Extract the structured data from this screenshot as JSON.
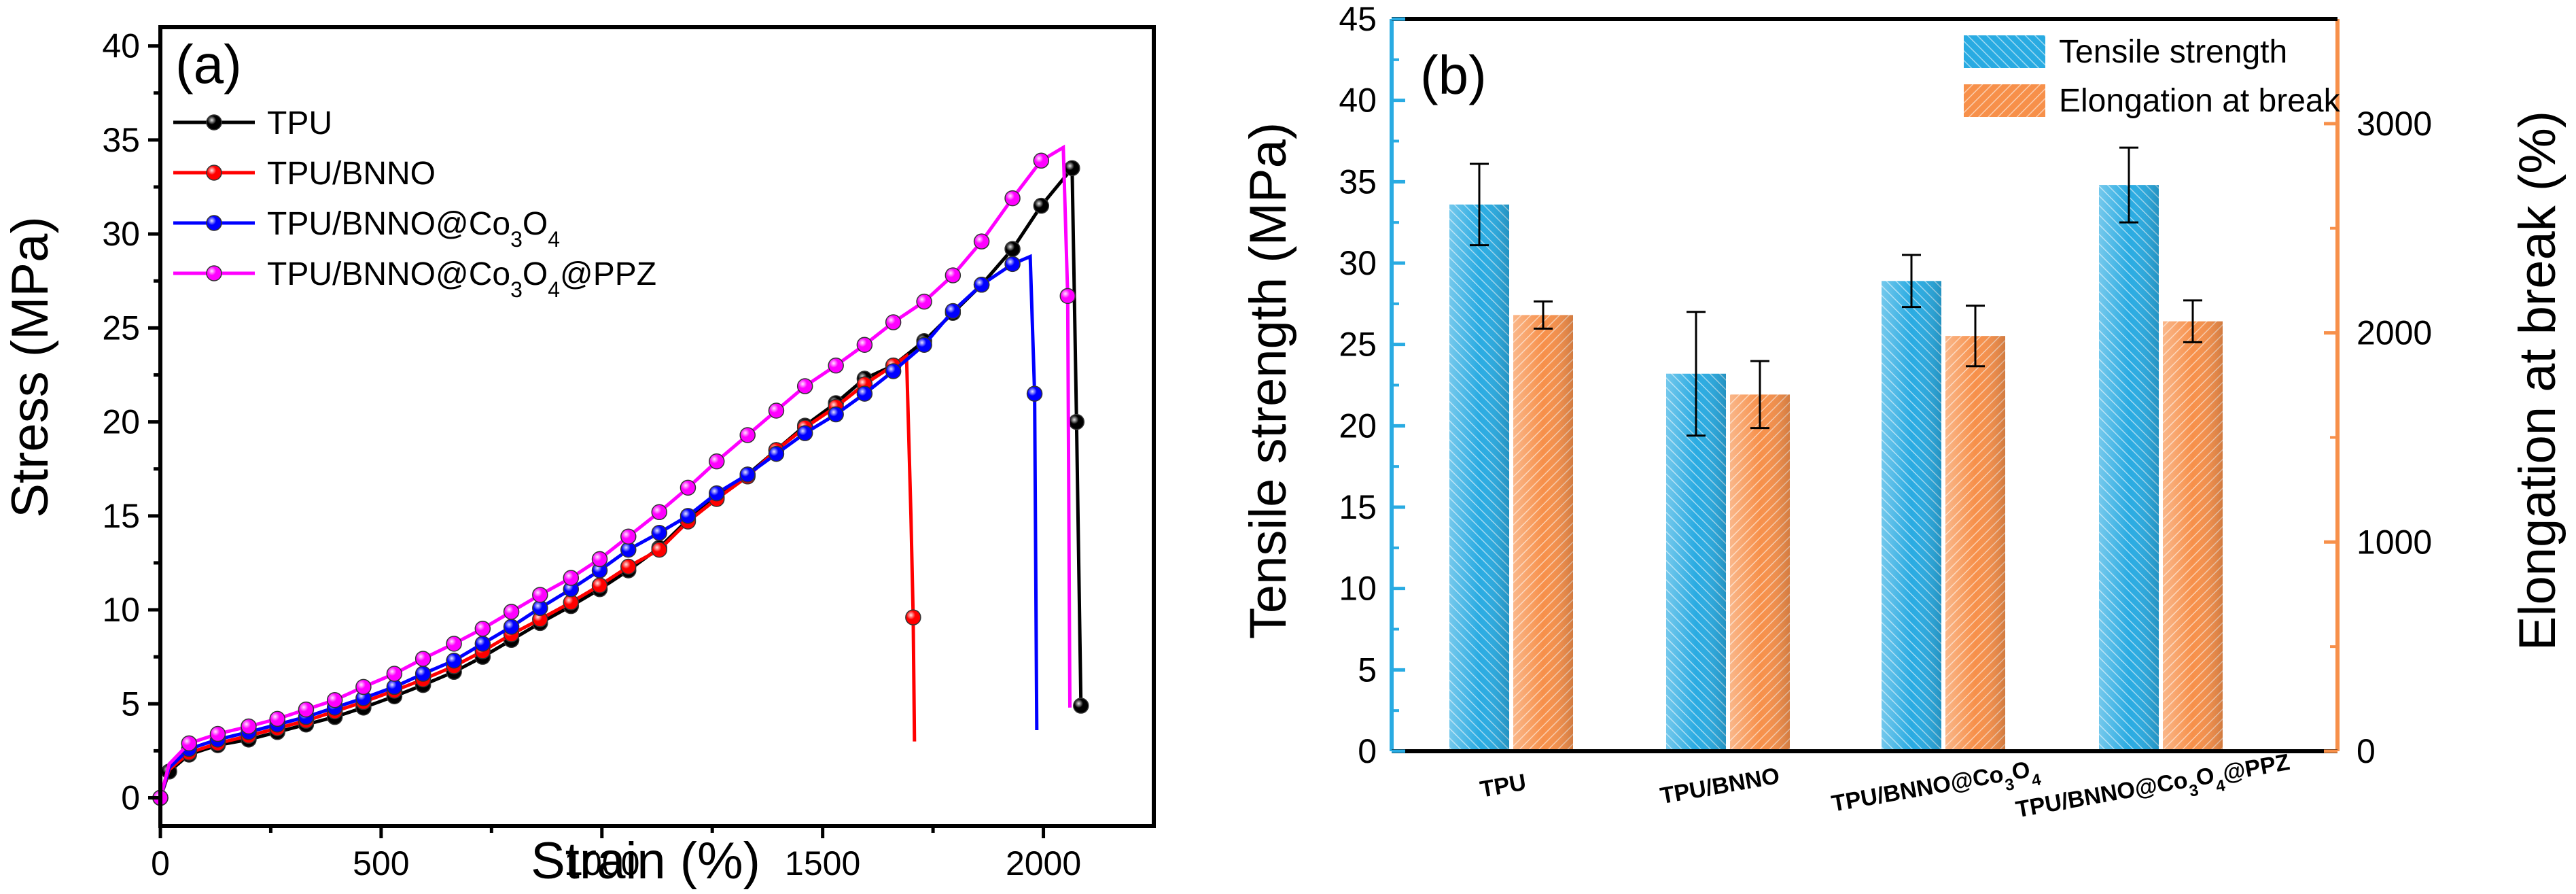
{
  "chart_data": [
    {
      "panel": "(a)",
      "type": "line",
      "xlabel": "Strain (%)",
      "ylabel": "Stress (MPa)",
      "xlim": [
        0,
        2250
      ],
      "ylim": [
        -1.5,
        41
      ],
      "x_ticks": [
        0,
        500,
        1000,
        1500,
        2000
      ],
      "y_ticks": [
        0,
        5,
        10,
        15,
        20,
        25,
        30,
        35,
        40
      ],
      "legend_position": "top-left",
      "series": [
        {
          "name": "TPU",
          "color": "#000000",
          "points": [
            [
              0,
              0
            ],
            [
              20,
              1.4
            ],
            [
              65,
              2.3
            ],
            [
              130,
              2.8
            ],
            [
              200,
              3.1
            ],
            [
              265,
              3.5
            ],
            [
              330,
              3.9
            ],
            [
              395,
              4.3
            ],
            [
              460,
              4.8
            ],
            [
              530,
              5.4
            ],
            [
              595,
              6.0
            ],
            [
              665,
              6.7
            ],
            [
              730,
              7.5
            ],
            [
              795,
              8.4
            ],
            [
              860,
              9.3
            ],
            [
              930,
              10.2
            ],
            [
              995,
              11.1
            ],
            [
              1060,
              12.1
            ],
            [
              1130,
              13.3
            ],
            [
              1195,
              14.8
            ],
            [
              1260,
              16.0
            ],
            [
              1330,
              17.2
            ],
            [
              1395,
              18.5
            ],
            [
              1460,
              19.8
            ],
            [
              1530,
              21.0
            ],
            [
              1595,
              22.3
            ],
            [
              1660,
              23.0
            ],
            [
              1730,
              24.3
            ],
            [
              1795,
              25.8
            ],
            [
              1860,
              27.3
            ],
            [
              1930,
              29.2
            ],
            [
              1995,
              31.5
            ],
            [
              2065,
              33.5
            ],
            [
              2075,
              20.0
            ],
            [
              2085,
              4.9
            ]
          ],
          "markers_every": 1
        },
        {
          "name": "TPU/BNNO",
          "color": "#ff0000",
          "points": [
            [
              0,
              0
            ],
            [
              20,
              1.5
            ],
            [
              65,
              2.4
            ],
            [
              130,
              2.9
            ],
            [
              200,
              3.3
            ],
            [
              265,
              3.7
            ],
            [
              330,
              4.1
            ],
            [
              395,
              4.6
            ],
            [
              460,
              5.1
            ],
            [
              530,
              5.7
            ],
            [
              595,
              6.3
            ],
            [
              665,
              7.0
            ],
            [
              730,
              7.8
            ],
            [
              795,
              8.7
            ],
            [
              860,
              9.5
            ],
            [
              930,
              10.4
            ],
            [
              995,
              11.3
            ],
            [
              1060,
              12.3
            ],
            [
              1130,
              13.2
            ],
            [
              1195,
              14.7
            ],
            [
              1260,
              15.9
            ],
            [
              1330,
              17.1
            ],
            [
              1395,
              18.5
            ],
            [
              1460,
              19.7
            ],
            [
              1530,
              20.8
            ],
            [
              1595,
              22.0
            ],
            [
              1660,
              23.0
            ],
            [
              1690,
              23.5
            ],
            [
              1700,
              15.0
            ],
            [
              1705,
              9.6
            ],
            [
              1708,
              3.0
            ]
          ],
          "marker_points": [
            [
              0,
              0
            ],
            [
              65,
              2.4
            ],
            [
              130,
              2.9
            ],
            [
              200,
              3.3
            ],
            [
              265,
              3.7
            ],
            [
              330,
              4.1
            ],
            [
              395,
              4.6
            ],
            [
              460,
              5.1
            ],
            [
              530,
              5.7
            ],
            [
              595,
              6.3
            ],
            [
              665,
              7.0
            ],
            [
              730,
              7.8
            ],
            [
              795,
              8.7
            ],
            [
              860,
              9.5
            ],
            [
              930,
              10.4
            ],
            [
              995,
              11.3
            ],
            [
              1060,
              12.3
            ],
            [
              1130,
              13.2
            ],
            [
              1195,
              14.7
            ],
            [
              1260,
              15.9
            ],
            [
              1330,
              17.1
            ],
            [
              1395,
              18.5
            ],
            [
              1460,
              19.7
            ],
            [
              1530,
              20.8
            ],
            [
              1595,
              22.0
            ],
            [
              1660,
              23.0
            ],
            [
              1705,
              9.6
            ]
          ]
        },
        {
          "name": "TPU/BNNO@Co3O4",
          "color": "#0000ff",
          "points": [
            [
              0,
              0
            ],
            [
              20,
              1.6
            ],
            [
              65,
              2.6
            ],
            [
              130,
              3.1
            ],
            [
              200,
              3.5
            ],
            [
              265,
              3.9
            ],
            [
              330,
              4.3
            ],
            [
              395,
              4.8
            ],
            [
              460,
              5.3
            ],
            [
              530,
              5.9
            ],
            [
              595,
              6.6
            ],
            [
              665,
              7.3
            ],
            [
              730,
              8.2
            ],
            [
              795,
              9.1
            ],
            [
              860,
              10.1
            ],
            [
              930,
              11.1
            ],
            [
              995,
              12.1
            ],
            [
              1060,
              13.2
            ],
            [
              1130,
              14.1
            ],
            [
              1195,
              15.0
            ],
            [
              1260,
              16.2
            ],
            [
              1330,
              17.2
            ],
            [
              1395,
              18.3
            ],
            [
              1460,
              19.4
            ],
            [
              1530,
              20.4
            ],
            [
              1595,
              21.5
            ],
            [
              1660,
              22.7
            ],
            [
              1730,
              24.1
            ],
            [
              1795,
              25.9
            ],
            [
              1860,
              27.3
            ],
            [
              1930,
              28.4
            ],
            [
              1970,
              28.8
            ],
            [
              1980,
              21.5
            ],
            [
              1985,
              3.6
            ]
          ],
          "marker_points": [
            [
              0,
              0
            ],
            [
              65,
              2.6
            ],
            [
              130,
              3.1
            ],
            [
              200,
              3.5
            ],
            [
              265,
              3.9
            ],
            [
              330,
              4.3
            ],
            [
              395,
              4.8
            ],
            [
              460,
              5.3
            ],
            [
              530,
              5.9
            ],
            [
              595,
              6.6
            ],
            [
              665,
              7.3
            ],
            [
              730,
              8.2
            ],
            [
              795,
              9.1
            ],
            [
              860,
              10.1
            ],
            [
              930,
              11.1
            ],
            [
              995,
              12.1
            ],
            [
              1060,
              13.2
            ],
            [
              1130,
              14.1
            ],
            [
              1195,
              15.0
            ],
            [
              1260,
              16.2
            ],
            [
              1330,
              17.2
            ],
            [
              1395,
              18.3
            ],
            [
              1460,
              19.4
            ],
            [
              1530,
              20.4
            ],
            [
              1595,
              21.5
            ],
            [
              1660,
              22.7
            ],
            [
              1730,
              24.1
            ],
            [
              1795,
              25.9
            ],
            [
              1860,
              27.3
            ],
            [
              1930,
              28.4
            ],
            [
              1980,
              21.5
            ]
          ]
        },
        {
          "name": "TPU/BNNO@Co3O4@PPZ",
          "color": "#ff00ff",
          "points": [
            [
              0,
              0
            ],
            [
              20,
              1.8
            ],
            [
              65,
              2.9
            ],
            [
              130,
              3.4
            ],
            [
              200,
              3.8
            ],
            [
              265,
              4.2
            ],
            [
              330,
              4.7
            ],
            [
              395,
              5.2
            ],
            [
              460,
              5.9
            ],
            [
              530,
              6.6
            ],
            [
              595,
              7.4
            ],
            [
              665,
              8.2
            ],
            [
              730,
              9.0
            ],
            [
              795,
              9.9
            ],
            [
              860,
              10.8
            ],
            [
              930,
              11.7
            ],
            [
              995,
              12.7
            ],
            [
              1060,
              13.9
            ],
            [
              1130,
              15.2
            ],
            [
              1195,
              16.5
            ],
            [
              1260,
              17.9
            ],
            [
              1330,
              19.3
            ],
            [
              1395,
              20.6
            ],
            [
              1460,
              21.9
            ],
            [
              1530,
              23.0
            ],
            [
              1595,
              24.1
            ],
            [
              1660,
              25.3
            ],
            [
              1730,
              26.4
            ],
            [
              1795,
              27.8
            ],
            [
              1860,
              29.6
            ],
            [
              1930,
              31.9
            ],
            [
              1995,
              33.9
            ],
            [
              2045,
              34.6
            ],
            [
              2055,
              26.7
            ],
            [
              2060,
              4.8
            ]
          ],
          "marker_points": [
            [
              0,
              0
            ],
            [
              65,
              2.9
            ],
            [
              130,
              3.4
            ],
            [
              200,
              3.8
            ],
            [
              265,
              4.2
            ],
            [
              330,
              4.7
            ],
            [
              395,
              5.2
            ],
            [
              460,
              5.9
            ],
            [
              530,
              6.6
            ],
            [
              595,
              7.4
            ],
            [
              665,
              8.2
            ],
            [
              730,
              9.0
            ],
            [
              795,
              9.9
            ],
            [
              860,
              10.8
            ],
            [
              930,
              11.7
            ],
            [
              995,
              12.7
            ],
            [
              1060,
              13.9
            ],
            [
              1130,
              15.2
            ],
            [
              1195,
              16.5
            ],
            [
              1260,
              17.9
            ],
            [
              1330,
              19.3
            ],
            [
              1395,
              20.6
            ],
            [
              1460,
              21.9
            ],
            [
              1530,
              23.0
            ],
            [
              1595,
              24.1
            ],
            [
              1660,
              25.3
            ],
            [
              1730,
              26.4
            ],
            [
              1795,
              27.8
            ],
            [
              1860,
              29.6
            ],
            [
              1930,
              31.9
            ],
            [
              1995,
              33.9
            ],
            [
              2055,
              26.7
            ]
          ]
        }
      ]
    },
    {
      "panel": "(b)",
      "type": "bar",
      "categories": [
        "TPU",
        "TPU/BNNO",
        "TPU/BNNO@Co3O4",
        "TPU/BNNO@Co3O4@PPZ"
      ],
      "ylabel_left": "Tensile strength (MPa)",
      "ylabel_right": "Elongation at break (%)",
      "ylim_left": [
        0,
        45
      ],
      "ylim_right": [
        0,
        3500
      ],
      "y_ticks_left": [
        0,
        5,
        10,
        15,
        20,
        25,
        30,
        35,
        40,
        45
      ],
      "y_ticks_right": [
        0,
        1000,
        2000,
        3000
      ],
      "legend_position": "top-right",
      "series": [
        {
          "name": "Tensile strength",
          "axis": "left",
          "color": "#29abe2",
          "values": [
            33.6,
            23.2,
            28.9,
            34.8
          ],
          "errors": [
            2.5,
            3.8,
            1.6,
            2.3
          ]
        },
        {
          "name": "Elongation at break",
          "axis": "right",
          "color": "#f7904a",
          "values": [
            2085,
            1705,
            1985,
            2055
          ],
          "errors": [
            65,
            160,
            145,
            100
          ]
        }
      ]
    }
  ]
}
